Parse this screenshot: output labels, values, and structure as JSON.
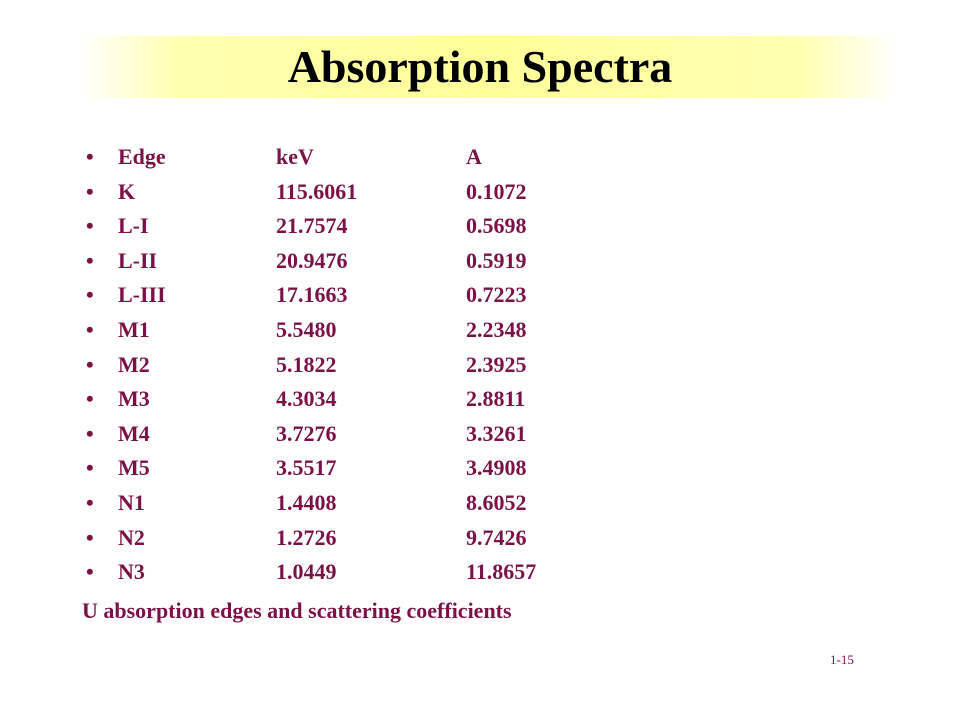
{
  "slide": {
    "title": "Absorption Spectra",
    "caption": "U absorption edges and scattering coefficients",
    "page_number": "1-15",
    "colors": {
      "title_band": "#ffff99",
      "text": "#7a1247",
      "title_text": "#000000"
    }
  },
  "table": {
    "bullet": "•",
    "rows": [
      {
        "edge": "Edge",
        "kev": "keV",
        "a": "A"
      },
      {
        "edge": "K",
        "kev": "115.6061",
        "a": "0.1072"
      },
      {
        "edge": "L-I",
        "kev": "21.7574",
        "a": "0.5698"
      },
      {
        "edge": "L-II",
        "kev": "20.9476",
        "a": "0.5919"
      },
      {
        "edge": "L-III",
        "kev": "17.1663",
        "a": "0.7223"
      },
      {
        "edge": "M1",
        "kev": "5.5480",
        "a": "2.2348"
      },
      {
        "edge": "M2",
        "kev": "5.1822",
        "a": "2.3925"
      },
      {
        "edge": "M3",
        "kev": "4.3034",
        "a": "2.8811"
      },
      {
        "edge": "M4",
        "kev": "3.7276",
        "a": "3.3261"
      },
      {
        "edge": "M5",
        "kev": "3.5517",
        "a": "3.4908"
      },
      {
        "edge": "N1",
        "kev": "1.4408",
        "a": "8.6052"
      },
      {
        "edge": "N2",
        "kev": "1.2726",
        "a": "9.7426"
      },
      {
        "edge": "N3",
        "kev": "1.0449",
        "a": "11.8657"
      }
    ]
  }
}
